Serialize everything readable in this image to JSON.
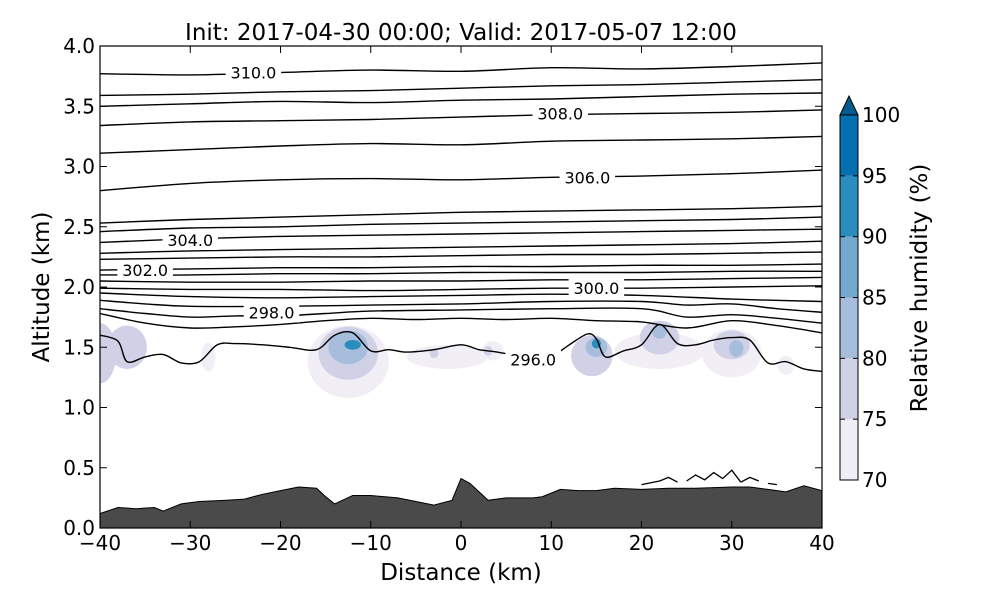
{
  "chart_data": {
    "type": "contour",
    "title": "Init: 2017-04-30 00:00; Valid: 2017-05-07 12:00",
    "xlabel": "Distance (km)",
    "ylabel": "Altitude (km)",
    "xlim": [
      -40,
      40
    ],
    "ylim": [
      0.0,
      4.0
    ],
    "xticks": [
      -40,
      -30,
      -20,
      -10,
      0,
      10,
      20,
      30,
      40
    ],
    "xtick_labels": [
      "−40",
      "−30",
      "−20",
      "−10",
      "0",
      "10",
      "20",
      "30",
      "40"
    ],
    "yticks": [
      0.0,
      0.5,
      1.0,
      1.5,
      2.0,
      2.5,
      3.0,
      3.5,
      4.0
    ],
    "ytick_labels": [
      "0.0",
      "0.5",
      "1.0",
      "1.5",
      "2.0",
      "2.5",
      "3.0",
      "3.5",
      "4.0"
    ],
    "colorbar": {
      "label": "Relative humidity (%)",
      "levels": [
        70,
        75,
        80,
        85,
        90,
        95,
        100
      ],
      "tick_labels": [
        "70",
        "75",
        "80",
        "85",
        "90",
        "95",
        "100"
      ],
      "colors": [
        "#f1eef6",
        "#d0d1e6",
        "#a6bddb",
        "#74a9cf",
        "#2b8cbe",
        "#0570b0",
        "#045a8d"
      ],
      "extend": "max"
    },
    "contour_labels": [
      {
        "text": "310.0",
        "x": -23,
        "y": 3.78
      },
      {
        "text": "308.0",
        "x": 11,
        "y": 3.44
      },
      {
        "text": "306.0",
        "x": 14,
        "y": 2.91
      },
      {
        "text": "304.0",
        "x": -30,
        "y": 2.39
      },
      {
        "text": "302.0",
        "x": -35,
        "y": 2.14
      },
      {
        "text": "300.0",
        "x": 15,
        "y": 1.99
      },
      {
        "text": "298.0",
        "x": -21,
        "y": 1.79
      },
      {
        "text": "296.0",
        "x": 8,
        "y": 1.4
      }
    ],
    "terrain_color": "#4a4a4a",
    "terrain": {
      "x": [
        -40,
        -38,
        -36,
        -34,
        -33,
        -31,
        -29,
        -26,
        -24,
        -22,
        -20,
        -18,
        -16,
        -15,
        -14,
        -12,
        -10,
        -7,
        -5,
        -3,
        -1,
        0,
        1,
        2,
        3,
        5,
        8,
        9,
        10,
        11,
        13,
        15,
        17,
        20,
        23,
        26,
        30,
        32,
        34,
        36,
        38,
        40
      ],
      "y": [
        0.12,
        0.17,
        0.16,
        0.17,
        0.14,
        0.2,
        0.22,
        0.23,
        0.24,
        0.28,
        0.31,
        0.34,
        0.33,
        0.26,
        0.2,
        0.27,
        0.27,
        0.25,
        0.22,
        0.19,
        0.23,
        0.41,
        0.37,
        0.3,
        0.23,
        0.25,
        0.25,
        0.26,
        0.29,
        0.32,
        0.31,
        0.31,
        0.33,
        0.32,
        0.33,
        0.33,
        0.34,
        0.34,
        0.32,
        0.3,
        0.35,
        0.31
      ]
    },
    "contour_lines": [
      {
        "level": 310.0,
        "x": [
          -40,
          -30,
          -20,
          -10,
          0,
          10,
          20,
          30,
          40
        ],
        "y": [
          3.77,
          3.76,
          3.78,
          3.8,
          3.79,
          3.82,
          3.81,
          3.83,
          3.86
        ]
      },
      {
        "level": 309.5,
        "x": [
          -40,
          -30,
          -20,
          -10,
          0,
          10,
          20,
          30,
          40
        ],
        "y": [
          3.59,
          3.6,
          3.62,
          3.63,
          3.65,
          3.67,
          3.68,
          3.7,
          3.72
        ]
      },
      {
        "level": 309.0,
        "x": [
          -40,
          -30,
          -20,
          -10,
          0,
          10,
          20,
          30,
          40
        ],
        "y": [
          3.5,
          3.52,
          3.54,
          3.53,
          3.55,
          3.56,
          3.58,
          3.6,
          3.61
        ]
      },
      {
        "level": 308.0,
        "x": [
          -40,
          -30,
          -20,
          -10,
          0,
          10,
          20,
          30,
          40
        ],
        "y": [
          3.34,
          3.37,
          3.38,
          3.39,
          3.41,
          3.43,
          3.44,
          3.45,
          3.47
        ]
      },
      {
        "level": 307.0,
        "x": [
          -40,
          -30,
          -20,
          -10,
          0,
          10,
          20,
          30,
          40
        ],
        "y": [
          3.11,
          3.14,
          3.17,
          3.19,
          3.18,
          3.21,
          3.22,
          3.23,
          3.25
        ]
      },
      {
        "level": 306.0,
        "x": [
          -40,
          -30,
          -20,
          -10,
          0,
          10,
          20,
          30,
          40
        ],
        "y": [
          2.8,
          2.86,
          2.89,
          2.9,
          2.89,
          2.91,
          2.92,
          2.94,
          2.97
        ]
      },
      {
        "level": 305.0,
        "x": [
          -40,
          -30,
          -20,
          -10,
          0,
          10,
          20,
          30,
          40
        ],
        "y": [
          2.53,
          2.56,
          2.58,
          2.6,
          2.62,
          2.63,
          2.64,
          2.65,
          2.67
        ]
      },
      {
        "level": 304.5,
        "x": [
          -40,
          -30,
          -20,
          -10,
          0,
          10,
          20,
          30,
          40
        ],
        "y": [
          2.46,
          2.49,
          2.5,
          2.52,
          2.53,
          2.54,
          2.55,
          2.56,
          2.58
        ]
      },
      {
        "level": 304.0,
        "x": [
          -40,
          -30,
          -20,
          -10,
          0,
          10,
          20,
          30,
          40
        ],
        "y": [
          2.37,
          2.4,
          2.42,
          2.43,
          2.44,
          2.45,
          2.46,
          2.47,
          2.48
        ]
      },
      {
        "level": 303.5,
        "x": [
          -40,
          -30,
          -20,
          -10,
          0,
          10,
          20,
          30,
          40
        ],
        "y": [
          2.28,
          2.3,
          2.31,
          2.32,
          2.33,
          2.34,
          2.35,
          2.36,
          2.38
        ]
      },
      {
        "level": 303.0,
        "x": [
          -40,
          -30,
          -20,
          -10,
          0,
          10,
          20,
          30,
          40
        ],
        "y": [
          2.23,
          2.24,
          2.25,
          2.25,
          2.26,
          2.27,
          2.27,
          2.28,
          2.29
        ]
      },
      {
        "level": 302.0,
        "x": [
          -40,
          -30,
          -20,
          -10,
          0,
          10,
          20,
          30,
          40
        ],
        "y": [
          2.14,
          2.15,
          2.16,
          2.16,
          2.17,
          2.17,
          2.18,
          2.18,
          2.19
        ]
      },
      {
        "level": 301.5,
        "x": [
          -40,
          -30,
          -20,
          -10,
          0,
          10,
          20,
          30,
          40
        ],
        "y": [
          2.1,
          2.1,
          2.11,
          2.11,
          2.12,
          2.12,
          2.12,
          2.13,
          2.13
        ]
      },
      {
        "level": 301.0,
        "x": [
          -40,
          -30,
          -20,
          -10,
          0,
          10,
          20,
          30,
          40
        ],
        "y": [
          2.05,
          2.04,
          2.04,
          2.05,
          2.05,
          2.06,
          2.06,
          2.07,
          2.08
        ]
      },
      {
        "level": 300.0,
        "x": [
          -40,
          -30,
          -20,
          -10,
          0,
          10,
          20,
          30,
          40
        ],
        "y": [
          1.99,
          1.98,
          1.98,
          1.97,
          1.98,
          1.99,
          1.99,
          2.0,
          2.01
        ]
      },
      {
        "level": 299.5,
        "x": [
          -40,
          -30,
          -20,
          -10,
          0,
          10,
          20,
          30,
          40
        ],
        "y": [
          1.95,
          1.92,
          1.91,
          1.92,
          1.93,
          1.94,
          1.93,
          1.9,
          1.88
        ]
      },
      {
        "level": 299.0,
        "x": [
          -40,
          -35,
          -30,
          -20,
          -10,
          0,
          10,
          20,
          25,
          30,
          35,
          40
        ],
        "y": [
          1.89,
          1.86,
          1.84,
          1.84,
          1.85,
          1.86,
          1.88,
          1.88,
          1.85,
          1.86,
          1.82,
          1.79
        ]
      },
      {
        "level": 298.5,
        "x": [
          -40,
          -35,
          -30,
          -25,
          -20,
          -15,
          -10,
          0,
          10,
          20,
          25,
          30,
          35,
          40
        ],
        "y": [
          1.82,
          1.78,
          1.75,
          1.76,
          1.76,
          1.78,
          1.8,
          1.81,
          1.82,
          1.82,
          1.75,
          1.77,
          1.74,
          1.7
        ]
      },
      {
        "level": 298.0,
        "x": [
          -40,
          -35,
          -30,
          -25,
          -20,
          -15,
          -10,
          -5,
          0,
          5,
          10,
          15,
          20,
          25,
          30,
          35,
          40
        ],
        "y": [
          1.78,
          1.7,
          1.66,
          1.67,
          1.69,
          1.72,
          1.74,
          1.73,
          1.74,
          1.73,
          1.74,
          1.72,
          1.71,
          1.66,
          1.72,
          1.68,
          1.62
        ]
      },
      {
        "level": 296.0,
        "x": [
          -40,
          -38,
          -37,
          -35,
          -33,
          -31,
          -29,
          -27,
          -25,
          -22,
          -19,
          -16,
          -14,
          -12,
          -10,
          -8,
          -6,
          -3,
          0,
          2,
          4,
          6,
          8,
          10,
          12,
          14,
          15,
          16,
          18,
          20,
          22,
          24,
          26,
          28,
          30,
          32,
          34,
          36,
          38,
          40
        ],
        "y": [
          1.6,
          1.55,
          1.38,
          1.42,
          1.44,
          1.37,
          1.38,
          1.52,
          1.53,
          1.52,
          1.5,
          1.48,
          1.6,
          1.62,
          1.47,
          1.48,
          1.46,
          1.48,
          1.52,
          1.48,
          1.46,
          1.43,
          1.38,
          1.42,
          1.52,
          1.61,
          1.57,
          1.42,
          1.47,
          1.52,
          1.69,
          1.53,
          1.52,
          1.56,
          1.58,
          1.56,
          1.37,
          1.38,
          1.32,
          1.3
        ]
      }
    ],
    "contour_fragments": [
      {
        "x": [
          20,
          22,
          23,
          24
        ],
        "y": [
          0.36,
          0.39,
          0.42,
          0.38
        ]
      },
      {
        "x": [
          25,
          26,
          27,
          28,
          29,
          30,
          31
        ],
        "y": [
          0.39,
          0.44,
          0.4,
          0.46,
          0.41,
          0.48,
          0.38
        ]
      },
      {
        "x": [
          31,
          32,
          33
        ],
        "y": [
          0.38,
          0.42,
          0.39
        ]
      },
      {
        "x": [
          34,
          35
        ],
        "y": [
          0.37,
          0.36
        ]
      }
    ],
    "rh_patches": [
      {
        "x": -40,
        "y": 1.45,
        "rx": 1.8,
        "ry": 0.25,
        "level": 75
      },
      {
        "x": -37,
        "y": 1.5,
        "rx": 2.2,
        "ry": 0.18,
        "level": 75
      },
      {
        "x": -28,
        "y": 1.42,
        "rx": 0.8,
        "ry": 0.12,
        "level": 70
      },
      {
        "x": -12.5,
        "y": 1.38,
        "rx": 4.5,
        "ry": 0.3,
        "level": 70
      },
      {
        "x": -12.5,
        "y": 1.45,
        "rx": 3.3,
        "ry": 0.22,
        "level": 75
      },
      {
        "x": -12.5,
        "y": 1.5,
        "rx": 2.2,
        "ry": 0.14,
        "level": 80
      },
      {
        "x": -12.0,
        "y": 1.52,
        "rx": 0.9,
        "ry": 0.04,
        "level": 90
      },
      {
        "x": -1.5,
        "y": 1.42,
        "rx": 4.5,
        "ry": 0.1,
        "level": 70
      },
      {
        "x": -3.0,
        "y": 1.45,
        "rx": 0.5,
        "ry": 0.04,
        "level": 75
      },
      {
        "x": 3.5,
        "y": 1.47,
        "rx": 1.2,
        "ry": 0.08,
        "level": 70
      },
      {
        "x": 3.0,
        "y": 1.47,
        "rx": 0.5,
        "ry": 0.04,
        "level": 75
      },
      {
        "x": 14.5,
        "y": 1.43,
        "rx": 2.3,
        "ry": 0.17,
        "level": 75
      },
      {
        "x": 15.0,
        "y": 1.5,
        "rx": 1.2,
        "ry": 0.08,
        "level": 80
      },
      {
        "x": 15.0,
        "y": 1.53,
        "rx": 0.5,
        "ry": 0.04,
        "level": 90
      },
      {
        "x": 22.0,
        "y": 1.47,
        "rx": 5.0,
        "ry": 0.15,
        "level": 70
      },
      {
        "x": 22.0,
        "y": 1.58,
        "rx": 2.2,
        "ry": 0.14,
        "level": 75
      },
      {
        "x": 22.0,
        "y": 1.63,
        "rx": 0.8,
        "ry": 0.06,
        "level": 80
      },
      {
        "x": 30.0,
        "y": 1.45,
        "rx": 3.3,
        "ry": 0.2,
        "level": 70
      },
      {
        "x": 30.0,
        "y": 1.52,
        "rx": 2.0,
        "ry": 0.12,
        "level": 75
      },
      {
        "x": 30.5,
        "y": 1.49,
        "rx": 0.8,
        "ry": 0.07,
        "level": 80
      },
      {
        "x": 36.0,
        "y": 1.35,
        "rx": 0.9,
        "ry": 0.08,
        "level": 70
      }
    ]
  }
}
